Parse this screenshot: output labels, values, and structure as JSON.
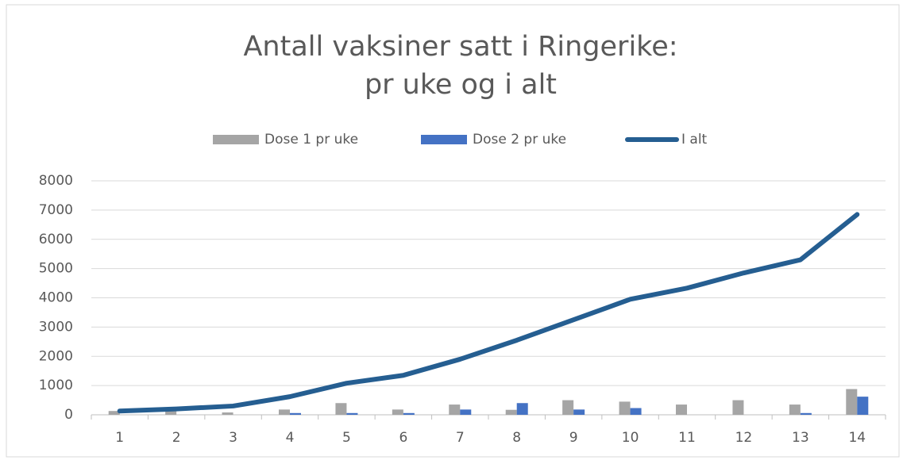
{
  "chart_data": {
    "type": "bar",
    "title": [
      "Antall vaksiner satt i Ringerike:",
      "pr uke og i alt"
    ],
    "categories": [
      "1",
      "2",
      "3",
      "4",
      "5",
      "6",
      "7",
      "8",
      "9",
      "10",
      "11",
      "12",
      "13",
      "14"
    ],
    "series": [
      {
        "name": "Dose 1 pr uke",
        "type": "bar",
        "color": "#a5a5a5",
        "values": [
          130,
          120,
          80,
          180,
          400,
          180,
          350,
          170,
          500,
          450,
          350,
          500,
          350,
          880
        ]
      },
      {
        "name": "Dose 2 pr uke",
        "type": "bar",
        "color": "#4472c4",
        "values": [
          0,
          0,
          0,
          60,
          60,
          60,
          180,
          400,
          180,
          230,
          0,
          0,
          60,
          620
        ]
      },
      {
        "name": "I alt",
        "type": "line",
        "color": "#255e91",
        "values": [
          130,
          200,
          300,
          620,
          1080,
          1350,
          1900,
          2550,
          3250,
          3950,
          4330,
          4850,
          5300,
          6850
        ]
      }
    ],
    "ylim": [
      0,
      8000
    ],
    "yticks": [
      0,
      1000,
      2000,
      3000,
      4000,
      5000,
      6000,
      7000,
      8000
    ],
    "grid": true,
    "legend": "top"
  }
}
